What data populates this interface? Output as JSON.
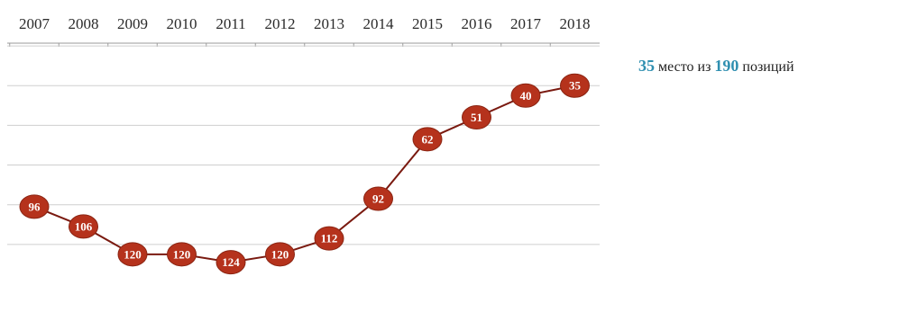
{
  "chart_data": {
    "type": "line",
    "x": [
      "2007",
      "2008",
      "2009",
      "2010",
      "2011",
      "2012",
      "2013",
      "2014",
      "2015",
      "2016",
      "2017",
      "2018"
    ],
    "values": [
      96,
      106,
      120,
      120,
      124,
      120,
      112,
      92,
      62,
      51,
      40,
      35
    ],
    "y_inverted": true,
    "ylim": [
      131,
      16
    ],
    "grid": true,
    "colors": {
      "line": "#7a1a10",
      "marker": "#b5321c",
      "marker_edge": "#8a2412",
      "grid": "#cfcfcf"
    }
  },
  "caption": {
    "rank": "35",
    "word_place": "место из",
    "total": "190",
    "word_positions": "позиций"
  }
}
